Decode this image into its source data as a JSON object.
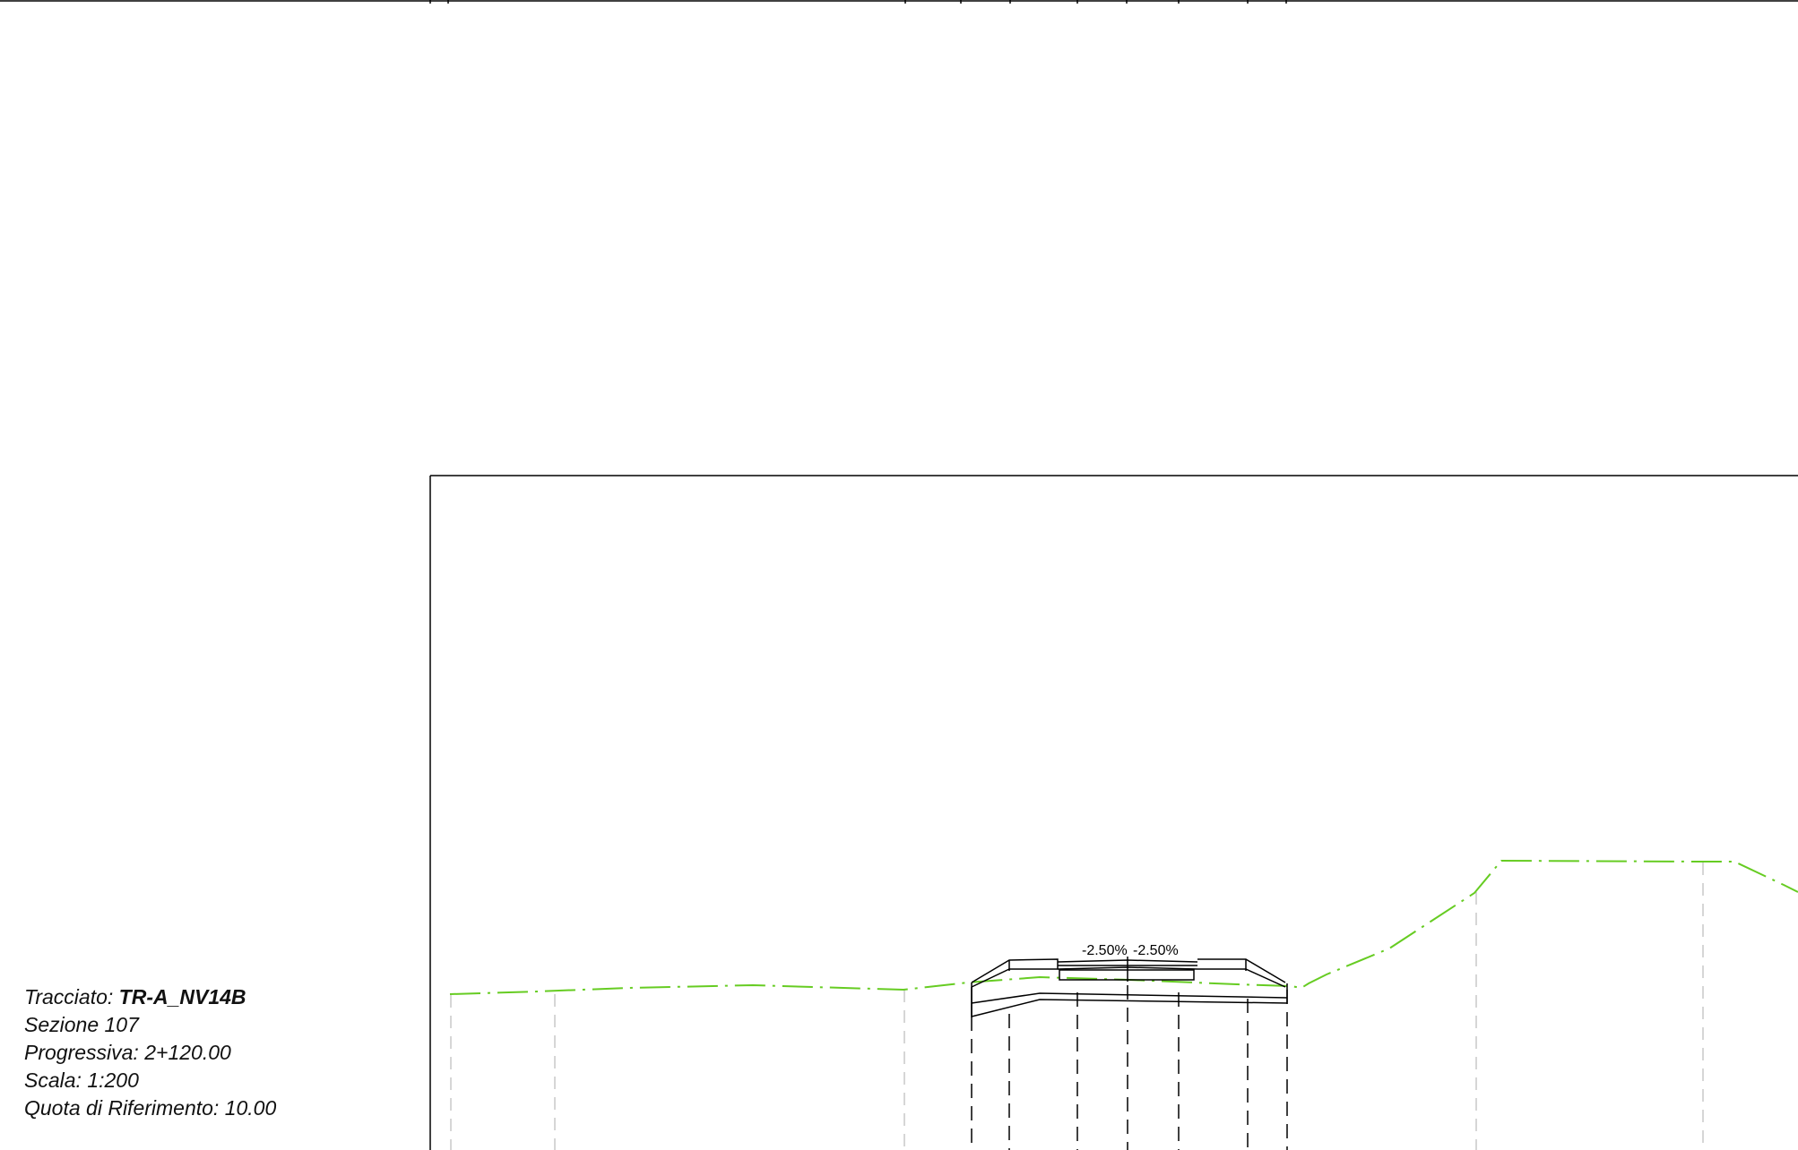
{
  "section_info": {
    "alignment_label": "Tracciato:",
    "alignment_value": "TR-A_NV14B",
    "section": "Sezione 107",
    "chainage": "Progressiva: 2+120.00",
    "scale": "Scala: 1:200",
    "reference_level": "Quota di Riferimento: 10.00"
  },
  "slope_labels": {
    "left": "-2.50%",
    "right": "-2.50%"
  },
  "colors": {
    "ground_line": "#66cc22",
    "lines": "#000000",
    "guides": "#c8c8c8"
  }
}
